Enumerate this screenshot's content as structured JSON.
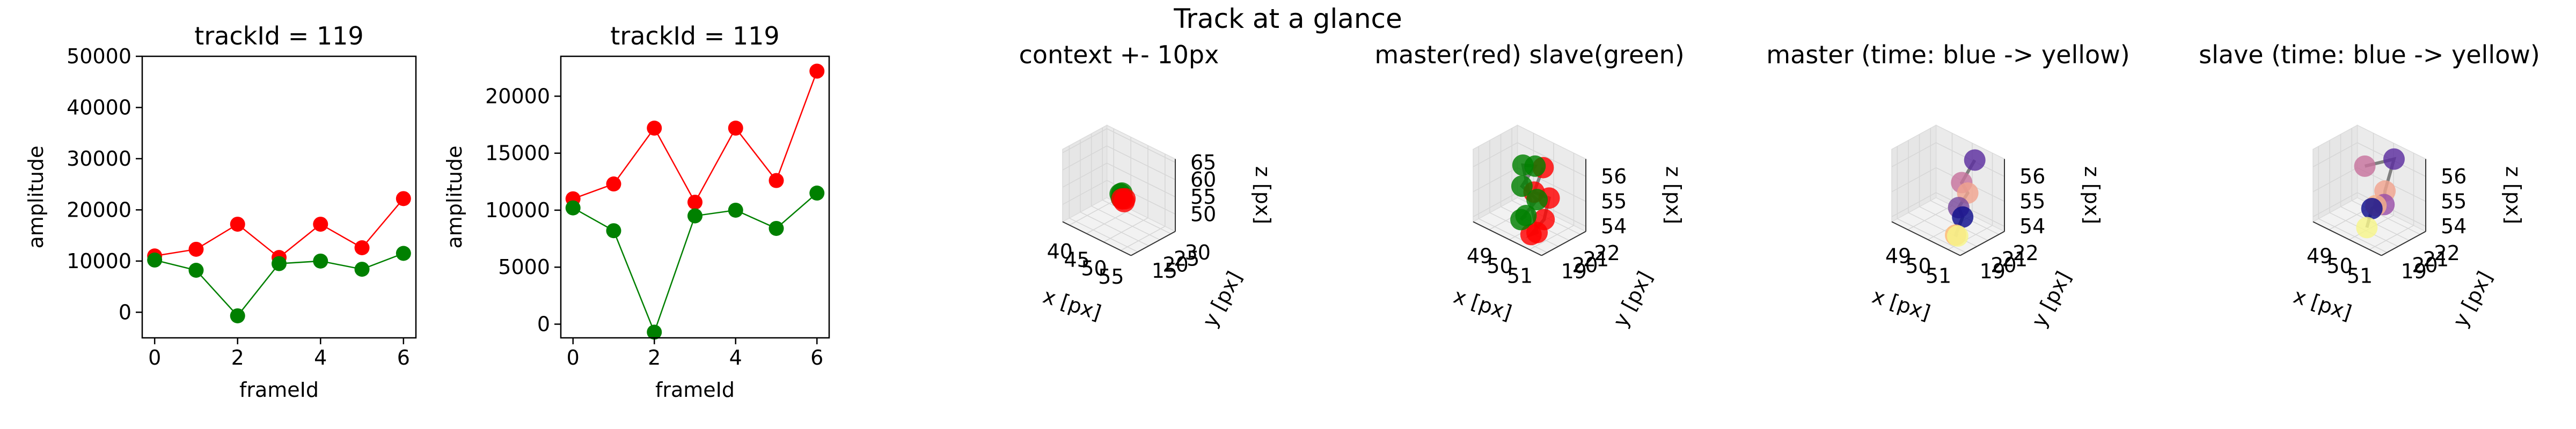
{
  "figure": {
    "title": "Track at a glance"
  },
  "chart_data": [
    {
      "type": "line",
      "title": "trackId = 119",
      "xlabel": "frameId",
      "ylabel": "amplitude",
      "x": [
        0,
        1,
        2,
        3,
        4,
        5,
        6
      ],
      "xlim": [
        -0.3,
        6.3
      ],
      "ylim": [
        -5000,
        50000
      ],
      "xticks": [
        0,
        2,
        4,
        6
      ],
      "yticks": [
        0,
        10000,
        20000,
        30000,
        40000,
        50000
      ],
      "series": [
        {
          "color": "#ff0000",
          "values": [
            11000,
            12300,
            17200,
            10700,
            17200,
            12600,
            22200
          ]
        },
        {
          "color": "#008000",
          "values": [
            10200,
            8200,
            -700,
            9500,
            10000,
            8400,
            11500
          ]
        }
      ]
    },
    {
      "type": "line",
      "title": "trackId = 119",
      "xlabel": "frameId",
      "ylabel": "amplitude",
      "x": [
        0,
        1,
        2,
        3,
        4,
        5,
        6
      ],
      "xlim": [
        -0.3,
        6.3
      ],
      "ylim": [
        -1200,
        23500
      ],
      "xticks": [
        0,
        2,
        4,
        6
      ],
      "yticks": [
        0,
        5000,
        10000,
        15000,
        20000
      ],
      "series": [
        {
          "color": "#ff0000",
          "values": [
            11000,
            12300,
            17200,
            10700,
            17200,
            12600,
            22200
          ]
        },
        {
          "color": "#008000",
          "values": [
            10200,
            8200,
            -700,
            9500,
            10000,
            8400,
            11500
          ]
        }
      ]
    },
    {
      "type": "scatter",
      "subtype": "3d",
      "title": "context +- 10px",
      "xlabel": "x [px]",
      "ylabel": "y [px]",
      "zlabel": "z [px]",
      "xlim": [
        38,
        58
      ],
      "ylim": [
        12,
        32
      ],
      "zlim": [
        45,
        66
      ],
      "xticks": [
        40,
        45,
        50,
        55
      ],
      "yticks": [
        15,
        20,
        25,
        30
      ],
      "zticks": [
        50,
        55,
        60,
        65
      ],
      "points": [
        {
          "x": 49.0,
          "y": 21,
          "z": 55.3,
          "color": "#008000"
        },
        {
          "x": 49.5,
          "y": 21,
          "z": 55.8,
          "color": "#008000"
        },
        {
          "x": 50.0,
          "y": 20,
          "z": 55.0,
          "color": "#008000"
        },
        {
          "x": 50.4,
          "y": 21,
          "z": 54.6,
          "color": "#ff0000"
        },
        {
          "x": 50.8,
          "y": 20,
          "z": 54.3,
          "color": "#ff0000"
        },
        {
          "x": 50.2,
          "y": 20,
          "z": 54.8,
          "color": "#ff0000"
        }
      ]
    },
    {
      "type": "scatter",
      "subtype": "3d",
      "title": "master(red) slave(green)",
      "xlabel": "x [px]",
      "ylabel": "y [px]",
      "zlabel": "z [px]",
      "xlim": [
        48.2,
        51.6
      ],
      "ylim": [
        18.5,
        22.5
      ],
      "zlim": [
        53.8,
        56.7
      ],
      "xticks": [
        49,
        50,
        51
      ],
      "yticks": [
        19,
        20,
        21,
        22
      ],
      "zticks": [
        54,
        55,
        56
      ],
      "points": [
        {
          "x": 50.3,
          "y": 21,
          "z": 56.2,
          "color": "#ff0000"
        },
        {
          "x": 50.4,
          "y": 20,
          "z": 55.5,
          "color": "#ff0000"
        },
        {
          "x": 50.6,
          "y": 21,
          "z": 55.1,
          "color": "#ff0000"
        },
        {
          "x": 50.9,
          "y": 20,
          "z": 54.6,
          "color": "#ff0000"
        },
        {
          "x": 50.8,
          "y": 19,
          "z": 54.2,
          "color": "#ff0000"
        },
        {
          "x": 51.1,
          "y": 19,
          "z": 54.4,
          "color": "#ff0000"
        },
        {
          "x": 49.3,
          "y": 21,
          "z": 55.9,
          "color": "#008000"
        },
        {
          "x": 49.9,
          "y": 21,
          "z": 56.1,
          "color": "#008000"
        },
        {
          "x": 49.8,
          "y": 20,
          "z": 55.5,
          "color": "#008000"
        },
        {
          "x": 50.0,
          "y": 21,
          "z": 54.8,
          "color": "#008000"
        },
        {
          "x": 50.3,
          "y": 19,
          "z": 54.6,
          "color": "#008000"
        },
        {
          "x": 50.0,
          "y": 20,
          "z": 54.4,
          "color": "#008000"
        }
      ]
    },
    {
      "type": "scatter",
      "subtype": "3d",
      "title": "master (time: blue -> yellow)",
      "xlabel": "x [px]",
      "ylabel": "y [px]",
      "zlabel": "z [px]",
      "xlim": [
        48.2,
        51.6
      ],
      "ylim": [
        18.5,
        22.5
      ],
      "zlim": [
        53.8,
        56.7
      ],
      "xticks": [
        49,
        50,
        51
      ],
      "yticks": [
        19,
        20,
        21,
        22
      ],
      "zticks": [
        54,
        55,
        56
      ],
      "points": [
        {
          "x": 50.4,
          "y": 22,
          "z": 56.3,
          "color": "#5b2d9f"
        },
        {
          "x": 50.3,
          "y": 21,
          "z": 55.6,
          "color": "#c7739d"
        },
        {
          "x": 50.6,
          "y": 21,
          "z": 55.3,
          "color": "#f0a48f"
        },
        {
          "x": 50.7,
          "y": 20,
          "z": 55.0,
          "color": "#7a4a9e"
        },
        {
          "x": 50.9,
          "y": 20,
          "z": 54.7,
          "color": "#0d0d8c"
        },
        {
          "x": 51.1,
          "y": 19,
          "z": 54.3,
          "color": "#ffb870"
        },
        {
          "x": 51.2,
          "y": 19,
          "z": 54.3,
          "color": "#f6f58a"
        }
      ]
    },
    {
      "type": "scatter",
      "subtype": "3d",
      "title": "slave (time: blue -> yellow)",
      "xlabel": "x [px]",
      "ylabel": "y [px]",
      "zlabel": "z [px]",
      "xlim": [
        48.2,
        51.6
      ],
      "ylim": [
        18.5,
        22.5
      ],
      "zlim": [
        53.8,
        56.7
      ],
      "xticks": [
        49,
        50,
        51
      ],
      "yticks": [
        19,
        20,
        21,
        22
      ],
      "zticks": [
        54,
        55,
        56
      ],
      "points": [
        {
          "x": 49.4,
          "y": 21,
          "z": 55.9,
          "color": "#c7739d"
        },
        {
          "x": 50.3,
          "y": 22,
          "z": 56.3,
          "color": "#5b2d9f"
        },
        {
          "x": 50.4,
          "y": 21,
          "z": 55.3,
          "color": "#f0a48f"
        },
        {
          "x": 50.9,
          "y": 20,
          "z": 55.2,
          "color": "#9a4fa8"
        },
        {
          "x": 50.5,
          "y": 20,
          "z": 55.0,
          "color": "#f6b28a"
        },
        {
          "x": 50.3,
          "y": 20,
          "z": 54.8,
          "color": "#0d0d8c"
        },
        {
          "x": 50.6,
          "y": 19,
          "z": 54.4,
          "color": "#f6f58a"
        }
      ]
    }
  ]
}
